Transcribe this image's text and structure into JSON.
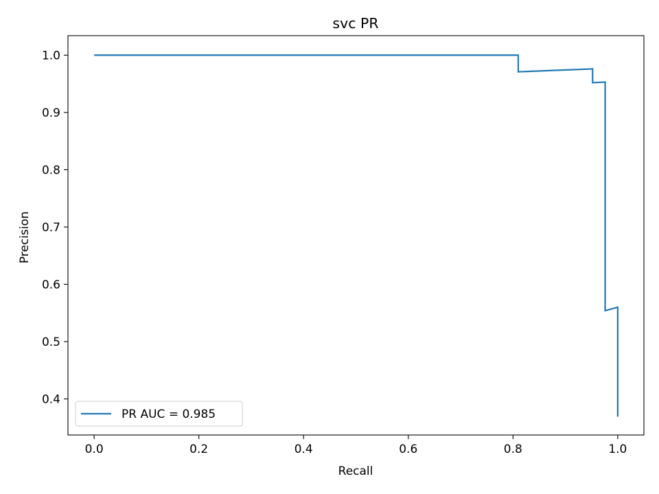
{
  "chart_data": {
    "type": "line",
    "title": "svc PR",
    "xlabel": "Recall",
    "ylabel": "Precision",
    "xlim": [
      -0.05,
      1.05
    ],
    "ylim": [
      0.337,
      1.034
    ],
    "xticks": [
      0.0,
      0.2,
      0.4,
      0.6,
      0.8,
      1.0
    ],
    "xtick_labels": [
      "0.0",
      "0.2",
      "0.4",
      "0.6",
      "0.8",
      "1.0"
    ],
    "yticks": [
      0.4,
      0.5,
      0.6,
      0.7,
      0.8,
      0.9,
      1.0
    ],
    "ytick_labels": [
      "0.4",
      "0.5",
      "0.6",
      "0.7",
      "0.8",
      "0.9",
      "1.0"
    ],
    "grid": false,
    "legend_position": "lower-left",
    "series": [
      {
        "name": "PR AUC = 0.985",
        "color": "#1f77b4",
        "x": [
          0.0,
          0.81,
          0.81,
          0.952,
          0.952,
          0.976,
          0.976,
          1.0,
          1.0
        ],
        "y": [
          1.0,
          1.0,
          0.971,
          0.976,
          0.952,
          0.953,
          0.554,
          0.56,
          0.369
        ]
      }
    ]
  }
}
